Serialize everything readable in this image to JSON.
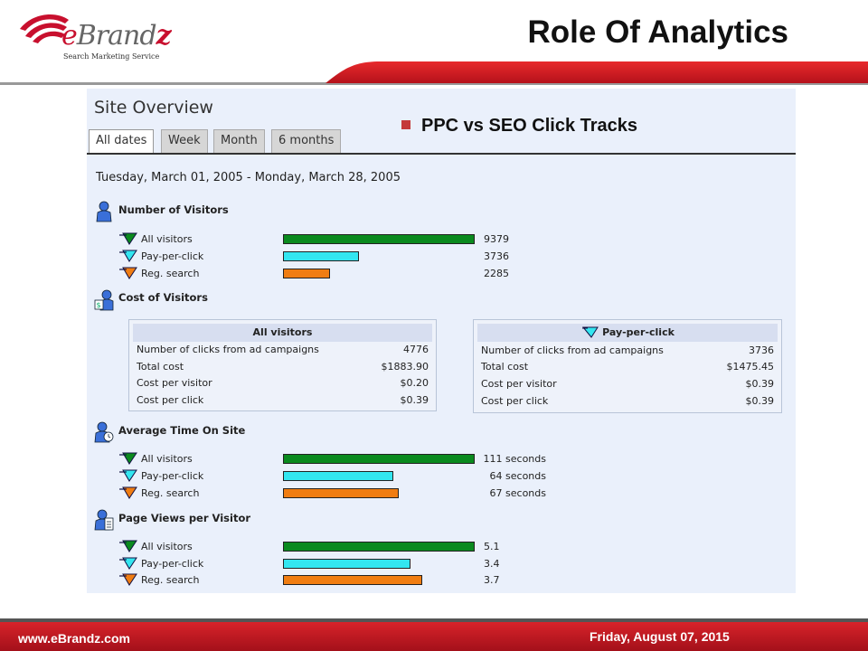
{
  "header": {
    "logo_text_prefix": "e",
    "logo_text_main": "Brand",
    "logo_text_suffix": "z",
    "logo_tagline": "Search Marketing Service",
    "title": "Role Of Analytics"
  },
  "colors": {
    "brand_red": "#c8102e",
    "panel_bg": "#eaf0fb",
    "all_visitors": "#0a8a1e",
    "pay_per_click": "#33e6f0",
    "reg_search": "#f07d12"
  },
  "panel": {
    "title": "Site Overview",
    "tabs": [
      {
        "label": "All dates",
        "active": true
      },
      {
        "label": "Week",
        "active": false
      },
      {
        "label": "Month",
        "active": false
      },
      {
        "label": "6 months",
        "active": false
      }
    ],
    "bullet_heading": "PPC vs SEO  Click Tracks",
    "date_range": "Tuesday, March 01, 2005 - Monday, March 28, 2005"
  },
  "sections": {
    "visitors": {
      "title": "Number of Visitors",
      "icon": "person-icon",
      "rows": [
        {
          "label": "All visitors",
          "value": "9379",
          "fraction": 1.0
        },
        {
          "label": "Pay-per-click",
          "value": "3736",
          "fraction": 0.398
        },
        {
          "label": "Reg. search",
          "value": "2285",
          "fraction": 0.244
        }
      ]
    },
    "cost": {
      "title": "Cost of Visitors",
      "icon": "person-dollar-icon",
      "tables": [
        {
          "header": "All visitors",
          "rows": [
            {
              "key": "Number of clicks from ad campaigns",
              "value": "4776"
            },
            {
              "key": "Total cost",
              "value": "$1883.90"
            },
            {
              "key": "Cost per visitor",
              "value": "$0.20"
            },
            {
              "key": "Cost per click",
              "value": "$0.39"
            }
          ]
        },
        {
          "header": "Pay-per-click",
          "rows": [
            {
              "key": "Number of clicks from ad campaigns",
              "value": "3736"
            },
            {
              "key": "Total cost",
              "value": "$1475.45"
            },
            {
              "key": "Cost per visitor",
              "value": "$0.39"
            },
            {
              "key": "Cost per click",
              "value": "$0.39"
            }
          ]
        }
      ]
    },
    "time": {
      "title": "Average Time On Site",
      "icon": "person-clock-icon",
      "rows": [
        {
          "label": "All visitors",
          "value": "111 seconds",
          "fraction": 1.0
        },
        {
          "label": "Pay-per-click",
          "value": "64 seconds",
          "fraction": 0.577
        },
        {
          "label": "Reg. search",
          "value": "67 seconds",
          "fraction": 0.604
        }
      ]
    },
    "pages": {
      "title": "Page Views per Visitor",
      "icon": "person-document-icon",
      "rows": [
        {
          "label": "All visitors",
          "value": "5.1",
          "fraction": 1.0
        },
        {
          "label": "Pay-per-click",
          "value": "3.4",
          "fraction": 0.667
        },
        {
          "label": "Reg. search",
          "value": "3.7",
          "fraction": 0.725
        }
      ]
    }
  },
  "footer": {
    "url": "www.eBrandz.com",
    "date": "Friday, August 07, 2015"
  }
}
